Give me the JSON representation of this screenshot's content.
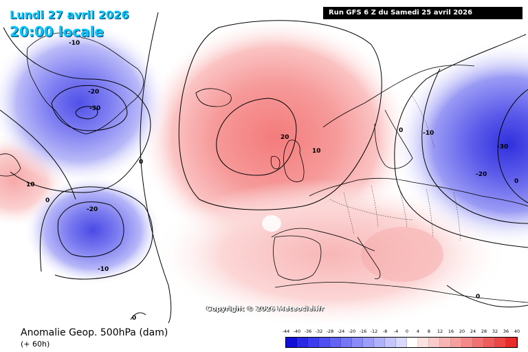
{
  "header": {
    "date": "Lundi 27 avril 2026",
    "local_time": "20:00 locale",
    "run": "Run GFS 6 Z du Samedi 25 avril 2026"
  },
  "copyright": "Copyright © 2026 Meteociel.fr",
  "product": {
    "title": "Anomalie Geop. 500hPa (dam)",
    "lead": "(+ 60h)"
  },
  "contour_labels": [
    "-10",
    "-20",
    "-30",
    "0",
    "20",
    "10",
    "0",
    "-10",
    "-30",
    "-20",
    "10",
    "0",
    "-20",
    "-10",
    "0",
    "0",
    "0"
  ],
  "legend": {
    "ticks": [
      "-44",
      "-40",
      "-36",
      "-32",
      "-28",
      "-24",
      "-20",
      "-16",
      "-12",
      "-8",
      "-4",
      "0",
      "4",
      "8",
      "12",
      "16",
      "20",
      "24",
      "28",
      "32",
      "36",
      "40"
    ],
    "colors": [
      "#1010d8",
      "#2a2ae6",
      "#3d3df0",
      "#5050f2",
      "#6363f4",
      "#7676f6",
      "#8a8af8",
      "#9d9dfa",
      "#b1b1fb",
      "#c5c5fc",
      "#d9d9fd",
      "#ffffff",
      "#fde0e0",
      "#fbcaca",
      "#f9b4b4",
      "#f79e9e",
      "#f58888",
      "#f27272",
      "#ef5c5c",
      "#ec4646",
      "#e82a2a"
    ]
  }
}
